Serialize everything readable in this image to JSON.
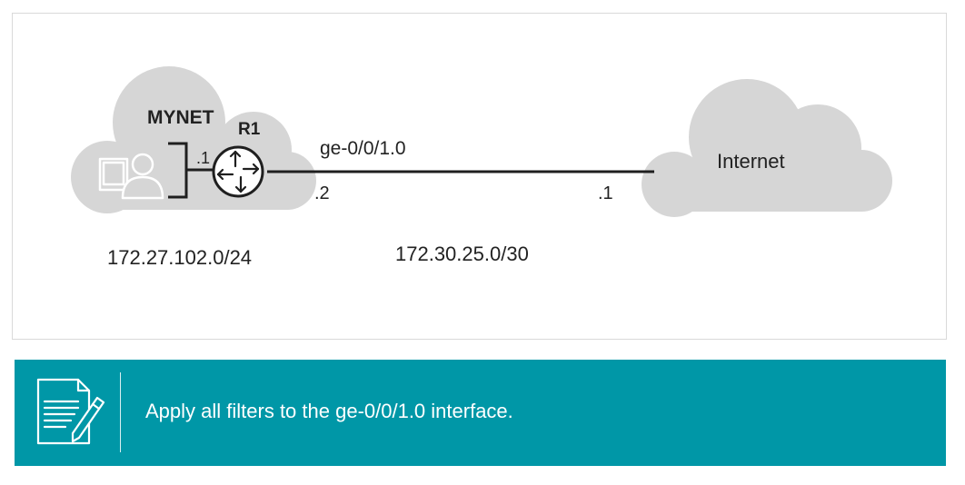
{
  "diagram": {
    "left_cloud_label": "MYNET",
    "router_label": "R1",
    "host_side_address": ".1",
    "interface_name": "ge-0/0/1.0",
    "router_side_address": ".2",
    "isp_side_address": ".1",
    "internet_label": "Internet",
    "lan_subnet": "172.27.102.0/24",
    "link_subnet": "172.30.25.0/30",
    "colors": {
      "cloud_fill": "#d6d6d6",
      "router_fill": "#ffffff",
      "line": "#1f1f1f",
      "frame_border": "#d9d9d9"
    },
    "icons": [
      "user-workstation-icon",
      "router-icon"
    ]
  },
  "note": {
    "text": "Apply all filters to the ge-0/0/1.0 interface.",
    "icon": "document-pencil-icon",
    "background_color": "#0097a7"
  }
}
